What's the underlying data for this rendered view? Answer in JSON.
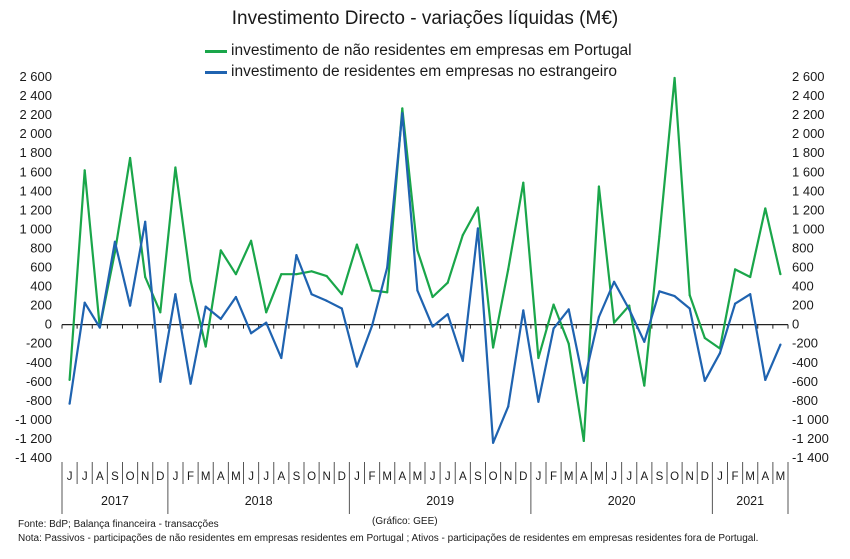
{
  "chart_data": {
    "type": "line",
    "title": "Investimento Directo - variações líquidas (M€)",
    "yticks": [
      "2 600",
      "2 400",
      "2 200",
      "2 000",
      "1 800",
      "1 600",
      "1 400",
      "1 200",
      "1 000",
      "800",
      "600",
      "400",
      "200",
      "0",
      "-200",
      "-400",
      "-600",
      "-800",
      "-1 000",
      "-1 200",
      "-1 400"
    ],
    "ylim": [
      -1400,
      2600
    ],
    "ytick_step": 200,
    "months": [
      "J",
      "J",
      "A",
      "S",
      "O",
      "N",
      "D",
      "J",
      "F",
      "M",
      "A",
      "M",
      "J",
      "J",
      "A",
      "S",
      "O",
      "N",
      "D",
      "J",
      "F",
      "M",
      "A",
      "M",
      "J",
      "J",
      "A",
      "S",
      "O",
      "N",
      "D",
      "J",
      "F",
      "M",
      "A",
      "M",
      "J",
      "J",
      "A",
      "S",
      "O",
      "N",
      "D",
      "J",
      "F",
      "M",
      "A",
      "M"
    ],
    "years": [
      {
        "label": "2017",
        "start": 0,
        "count": 7
      },
      {
        "label": "2018",
        "start": 7,
        "count": 12
      },
      {
        "label": "2019",
        "start": 19,
        "count": 12
      },
      {
        "label": "2020",
        "start": 31,
        "count": 12
      },
      {
        "label": "2021",
        "start": 43,
        "count": 5
      }
    ],
    "series": [
      {
        "name": "investimento de não residentes em empresas em Portugal",
        "color": "#1aa64a",
        "values": [
          -580,
          1620,
          -30,
          760,
          1750,
          500,
          130,
          1650,
          460,
          -230,
          780,
          530,
          880,
          130,
          530,
          530,
          560,
          510,
          320,
          840,
          360,
          340,
          2270,
          780,
          290,
          440,
          940,
          1230,
          -240,
          580,
          1490,
          -350,
          210,
          -200,
          -1220,
          1450,
          20,
          200,
          -640,
          930,
          2590,
          310,
          -140,
          -250,
          580,
          500,
          1220,
          530
        ]
      },
      {
        "name": "investimento de residentes em empresas no estrangeiro",
        "color": "#1f63b0",
        "values": [
          -830,
          230,
          -30,
          870,
          200,
          1080,
          -600,
          320,
          -620,
          190,
          60,
          290,
          -90,
          20,
          -350,
          730,
          320,
          250,
          170,
          -440,
          -10,
          600,
          2220,
          360,
          -20,
          110,
          -380,
          1010,
          -1240,
          -860,
          150,
          -810,
          -40,
          160,
          -610,
          80,
          450,
          160,
          -180,
          350,
          300,
          170,
          -590,
          -300,
          220,
          320,
          -580,
          -210
        ]
      }
    ]
  },
  "footnotes": {
    "source": "Fonte: BdP; Balança financeira - transacções",
    "credit": "(Gráfico: GEE)",
    "note": "Nota: Passivos - participações de não residentes em empresas residentes em Portugal ; Ativos - participações de residentes em empresas residentes fora de Portugal."
  }
}
